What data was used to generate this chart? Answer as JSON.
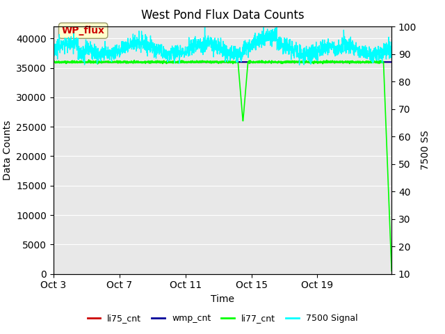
{
  "title": "West Pond Flux Data Counts",
  "xlabel": "Time",
  "ylabel_left": "Data Counts",
  "ylabel_right": "7500 SS",
  "xlim_days": [
    0,
    20.5
  ],
  "ylim_left": [
    0,
    42000
  ],
  "ylim_right": [
    10,
    100
  ],
  "x_ticks_labels": [
    "Oct 3",
    "Oct 7",
    "Oct 11",
    "Oct 15",
    "Oct 19"
  ],
  "x_ticks_positions": [
    0,
    4,
    8,
    12,
    16
  ],
  "y_ticks_left": [
    0,
    5000,
    10000,
    15000,
    20000,
    25000,
    30000,
    35000,
    40000
  ],
  "y_ticks_right": [
    10,
    20,
    30,
    40,
    50,
    60,
    70,
    80,
    90,
    100
  ],
  "background_color": "#e8e8e8",
  "li75_color": "#cc0000",
  "wmp_color": "#000099",
  "li77_color": "#00ff00",
  "signal_color": "#00ffff",
  "li75_value": 36000,
  "wmp_value": 36000,
  "annotation_box_color": "#ffffcc",
  "annotation_box_edge": "#999966",
  "annotation_text": "WP_flux",
  "annotation_text_color": "#cc0000"
}
